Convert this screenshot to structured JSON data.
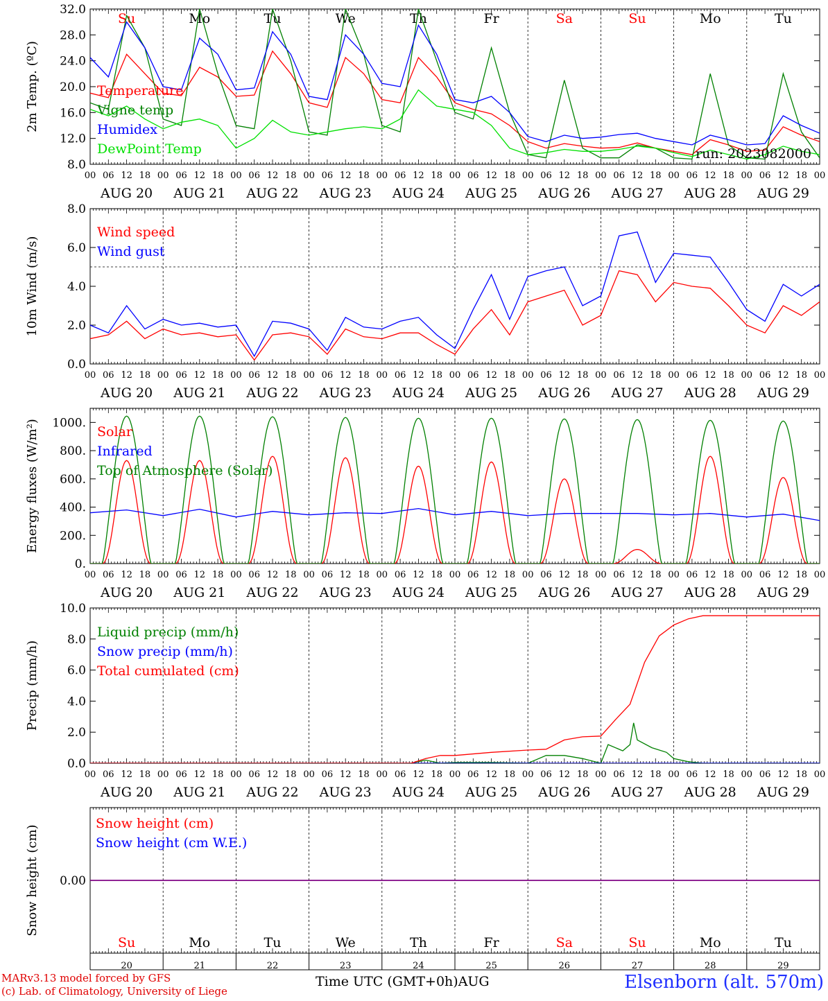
{
  "time_axis": {
    "days": [
      "AUG 20",
      "AUG 21",
      "AUG 22",
      "AUG 23",
      "AUG 24",
      "AUG 25",
      "AUG 26",
      "AUG 27",
      "AUG 28",
      "AUG 29"
    ],
    "hours": [
      "00",
      "06",
      "12",
      "18"
    ],
    "final_hour": "00",
    "weekdays": [
      "Su",
      "Mo",
      "Tu",
      "We",
      "Th",
      "Fr",
      "Sa",
      "Su",
      "Mo",
      "Tu"
    ],
    "weekend_flags": [
      true,
      false,
      false,
      false,
      false,
      false,
      true,
      true,
      false,
      false
    ],
    "day_numbers": [
      "20",
      "21",
      "22",
      "23",
      "24",
      "25",
      "26",
      "27",
      "28",
      "29"
    ],
    "month_label": "AUG",
    "xlabel": "Time UTC (GMT+0h)"
  },
  "colors": {
    "red": "#ff0000",
    "blue": "#0000ff",
    "green": "#008000",
    "lightgreen": "#00e000",
    "purple": "#800080",
    "weekend": "#ff0000",
    "weekday": "#000000"
  },
  "footer": {
    "credit_line1": "MARv3.13 model forced by GFS",
    "credit_line2": "(c) Lab. of Climatology, University of Liege",
    "station": "Elsenborn (alt. 570m)"
  },
  "chart_data": [
    {
      "type": "line",
      "ylabel": "2m Temp. (ºC)",
      "ylim": [
        8,
        32
      ],
      "yticks": [
        "8.0",
        "12.0",
        "16.0",
        "20.0",
        "24.0",
        "28.0",
        "32.0"
      ],
      "annotation": "run: 2023082000",
      "legend_placement": "left",
      "series": [
        {
          "name": "Temperature",
          "color": "red",
          "x": [
            0,
            0.25,
            0.5,
            0.75,
            1,
            1.25,
            1.5,
            1.75,
            2,
            2.25,
            2.5,
            2.75,
            3,
            3.25,
            3.5,
            3.75,
            4,
            4.25,
            4.5,
            4.75,
            5,
            5.25,
            5.5,
            5.75,
            6,
            6.25,
            6.5,
            6.75,
            7,
            7.25,
            7.5,
            7.75,
            8,
            8.25,
            8.5,
            8.75,
            9,
            9.25,
            9.5,
            9.75,
            10
          ],
          "y": [
            19,
            18.3,
            25,
            22,
            19,
            18.6,
            23,
            21.5,
            18.5,
            18.7,
            25.5,
            22,
            17.5,
            16.8,
            24.5,
            22,
            18,
            17.5,
            24.5,
            21.5,
            17.5,
            16.5,
            15.8,
            14,
            11.5,
            10.5,
            11.2,
            10.8,
            10.5,
            10.6,
            11.3,
            10.5,
            10,
            9.5,
            11.8,
            11,
            10,
            10.2,
            13.8,
            12.5,
            11.5
          ]
        },
        {
          "name": "Vigne temp",
          "color": "green",
          "x": [
            0,
            0.25,
            0.5,
            0.75,
            1,
            1.25,
            1.5,
            1.75,
            2,
            2.25,
            2.5,
            2.75,
            3,
            3.25,
            3.5,
            3.75,
            4,
            4.25,
            4.5,
            4.75,
            5,
            5.25,
            5.5,
            5.75,
            6,
            6.25,
            6.5,
            6.75,
            7,
            7.25,
            7.5,
            7.75,
            8,
            8.25,
            8.5,
            8.75,
            9,
            9.25,
            9.5,
            9.75,
            10
          ],
          "y": [
            17.5,
            16.5,
            31,
            26,
            15,
            14,
            32,
            22,
            14,
            13.5,
            32,
            24,
            13,
            12.5,
            32,
            25,
            14,
            13,
            32,
            24,
            16,
            15,
            26,
            16,
            9.5,
            9,
            21,
            10.5,
            9,
            9,
            11,
            10.5,
            9,
            8.8,
            22,
            11,
            9,
            8.8,
            22,
            13,
            9
          ]
        },
        {
          "name": "Humidex",
          "color": "blue",
          "x": [
            0,
            0.25,
            0.5,
            0.75,
            1,
            1.25,
            1.5,
            1.75,
            2,
            2.25,
            2.5,
            2.75,
            3,
            3.25,
            3.5,
            3.75,
            4,
            4.25,
            4.5,
            4.75,
            5,
            5.25,
            5.5,
            5.75,
            6,
            6.25,
            6.5,
            6.75,
            7,
            7.25,
            7.5,
            7.75,
            8,
            8.25,
            8.5,
            8.75,
            9,
            9.25,
            9.5,
            9.75,
            10
          ],
          "y": [
            24.5,
            21.5,
            30,
            26,
            20,
            19.5,
            27.5,
            25,
            19.5,
            19.8,
            28.5,
            25,
            18.5,
            18,
            28,
            25,
            20.5,
            20,
            29.5,
            25,
            18,
            17.5,
            18.5,
            16,
            12.3,
            11.5,
            12.5,
            12,
            12.2,
            12.6,
            12.8,
            12,
            11.5,
            11,
            12.5,
            11.8,
            11,
            11.2,
            15.5,
            14,
            12.8
          ]
        },
        {
          "name": "DewPoint Temp",
          "color": "lightgreen",
          "x": [
            0,
            0.25,
            0.5,
            0.75,
            1,
            1.25,
            1.5,
            1.75,
            2,
            2.25,
            2.5,
            2.75,
            3,
            3.25,
            3.5,
            3.75,
            4,
            4.25,
            4.5,
            4.75,
            5,
            5.25,
            5.5,
            5.75,
            6,
            6.25,
            6.5,
            6.75,
            7,
            7.25,
            7.5,
            7.75,
            8,
            8.25,
            8.5,
            8.75,
            9,
            9.25,
            9.5,
            9.75,
            10
          ],
          "y": [
            16.5,
            15.5,
            17,
            15,
            13.5,
            14.5,
            15,
            14,
            10.5,
            12,
            14.8,
            13,
            12.5,
            13,
            13.5,
            13.8,
            13.5,
            15,
            19.5,
            17,
            16.5,
            16,
            14,
            10.5,
            9.5,
            9.8,
            10.3,
            10,
            10,
            10.3,
            10.8,
            10.5,
            9.8,
            9.2,
            10.2,
            9.5,
            8.8,
            9.5,
            10.8,
            10,
            9.5
          ]
        }
      ]
    },
    {
      "type": "line",
      "ylabel": "10m Wind (m/s)",
      "ylim": [
        0,
        8
      ],
      "yticks": [
        "0.0",
        "2.0",
        "4.0",
        "6.0",
        "8.0"
      ],
      "reference_line": 5.0,
      "legend_placement": "left",
      "series": [
        {
          "name": "Wind speed",
          "color": "red",
          "x": [
            0,
            0.25,
            0.5,
            0.75,
            1,
            1.25,
            1.5,
            1.75,
            2,
            2.25,
            2.5,
            2.75,
            3,
            3.25,
            3.5,
            3.75,
            4,
            4.25,
            4.5,
            4.75,
            5,
            5.25,
            5.5,
            5.75,
            6,
            6.25,
            6.5,
            6.75,
            7,
            7.25,
            7.5,
            7.75,
            8,
            8.25,
            8.5,
            8.75,
            9,
            9.25,
            9.5,
            9.75,
            10
          ],
          "y": [
            1.3,
            1.5,
            2.2,
            1.3,
            1.8,
            1.5,
            1.6,
            1.4,
            1.5,
            0.2,
            1.5,
            1.6,
            1.4,
            0.5,
            1.8,
            1.4,
            1.3,
            1.6,
            1.6,
            1.0,
            0.5,
            1.8,
            2.8,
            1.5,
            3.2,
            3.5,
            3.8,
            2.0,
            2.5,
            4.8,
            4.6,
            3.2,
            4.2,
            4.0,
            3.9,
            3.0,
            2.0,
            1.6,
            3.0,
            2.5,
            3.2
          ]
        },
        {
          "name": "Wind gust",
          "color": "blue",
          "x": [
            0,
            0.25,
            0.5,
            0.75,
            1,
            1.25,
            1.5,
            1.75,
            2,
            2.25,
            2.5,
            2.75,
            3,
            3.25,
            3.5,
            3.75,
            4,
            4.25,
            4.5,
            4.75,
            5,
            5.25,
            5.5,
            5.75,
            6,
            6.25,
            6.5,
            6.75,
            7,
            7.25,
            7.5,
            7.75,
            8,
            8.25,
            8.5,
            8.75,
            9,
            9.25,
            9.5,
            9.75,
            10
          ],
          "y": [
            2.0,
            1.6,
            3.0,
            1.8,
            2.3,
            2.0,
            2.1,
            1.9,
            2.0,
            0.4,
            2.2,
            2.1,
            1.8,
            0.7,
            2.4,
            1.9,
            1.8,
            2.2,
            2.4,
            1.5,
            0.8,
            2.8,
            4.6,
            2.3,
            4.5,
            4.8,
            5.0,
            3.0,
            3.5,
            6.6,
            6.8,
            4.2,
            5.7,
            5.6,
            5.5,
            4.2,
            2.8,
            2.2,
            4.1,
            3.5,
            4.1
          ]
        }
      ]
    },
    {
      "type": "line",
      "ylabel": "Energy fluxes (W/m²)",
      "ylim": [
        0,
        1100
      ],
      "yticks": [
        "0.",
        "200.",
        "400.",
        "600.",
        "800.",
        "1000."
      ],
      "legend_placement": "left",
      "series": [
        {
          "name": "Solar",
          "color": "red",
          "daily_peak": [
            730,
            730,
            760,
            750,
            690,
            720,
            600,
            100,
            760,
            610
          ]
        },
        {
          "name": "Infrared",
          "color": "blue",
          "x": [
            0,
            0.5,
            1,
            1.5,
            2,
            2.5,
            3,
            3.5,
            4,
            4.5,
            5,
            5.5,
            6,
            6.5,
            7,
            7.5,
            8,
            8.5,
            9,
            9.5,
            10
          ],
          "y": [
            360,
            380,
            340,
            385,
            330,
            370,
            345,
            360,
            355,
            390,
            345,
            370,
            340,
            355,
            355,
            355,
            345,
            355,
            330,
            350,
            305
          ]
        },
        {
          "name": "Top of Atmosphere (Solar)",
          "color": "green",
          "daily_peak": [
            1045,
            1045,
            1040,
            1035,
            1030,
            1030,
            1025,
            1020,
            1015,
            1010
          ]
        }
      ]
    },
    {
      "type": "line",
      "ylabel": "Precip (mm/h)",
      "ylim": [
        0,
        10
      ],
      "yticks": [
        "0.0",
        "2.0",
        "4.0",
        "6.0",
        "8.0",
        "10.0"
      ],
      "legend_placement": "left",
      "series": [
        {
          "name": "Liquid precip (mm/h)",
          "color": "green",
          "x": [
            0,
            4.4,
            4.6,
            4.8,
            5,
            5.5,
            6,
            6.25,
            6.5,
            6.75,
            7,
            7.1,
            7.3,
            7.4,
            7.45,
            7.5,
            7.7,
            7.9,
            8,
            8.2,
            8.4,
            10
          ],
          "y": [
            0,
            0,
            0.2,
            0,
            0.05,
            0.05,
            0,
            0.5,
            0.5,
            0.3,
            0,
            1.2,
            0.8,
            1.2,
            2.6,
            1.5,
            1.0,
            0.7,
            0.3,
            0.1,
            0,
            0
          ]
        },
        {
          "name": "Snow precip (mm/h)",
          "color": "blue",
          "x": [
            0,
            10
          ],
          "y": [
            0,
            0
          ]
        },
        {
          "name": "Total cumulated (cm)",
          "color": "red",
          "x": [
            0,
            4.4,
            4.6,
            4.8,
            5,
            5.5,
            6,
            6.25,
            6.5,
            6.75,
            7,
            7.2,
            7.4,
            7.6,
            7.8,
            8,
            8.2,
            8.4,
            10
          ],
          "y": [
            0,
            0,
            0.3,
            0.5,
            0.5,
            0.7,
            0.85,
            0.9,
            1.5,
            1.7,
            1.75,
            2.8,
            3.8,
            6.5,
            8.2,
            8.9,
            9.3,
            9.5,
            9.5
          ]
        }
      ]
    },
    {
      "type": "line",
      "ylabel": "Snow height (cm)",
      "ylim": [
        -1,
        1
      ],
      "yticks": [
        "0.00"
      ],
      "legend_placement": "left",
      "series": [
        {
          "name": "Snow height (cm)",
          "color": "red",
          "x": [
            0,
            10
          ],
          "y": [
            0,
            0
          ]
        },
        {
          "name": "Snow height (cm W.E.)",
          "color": "blue",
          "x": [
            0,
            10
          ],
          "y": [
            0,
            0
          ]
        }
      ]
    }
  ]
}
